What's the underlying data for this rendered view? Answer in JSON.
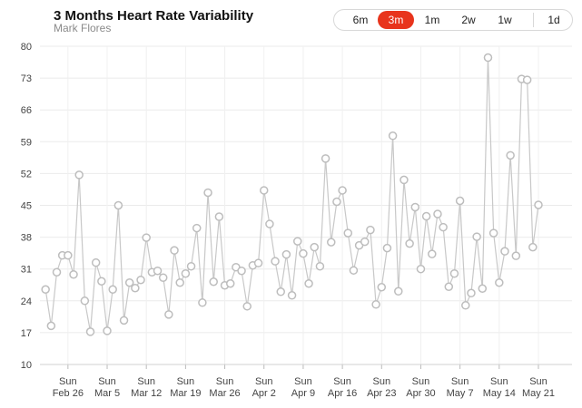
{
  "header": {
    "title": "3 Months Heart Rate Variability",
    "subtitle": "Mark Flores"
  },
  "range_selector": {
    "options": [
      "6m",
      "3m",
      "1m",
      "2w",
      "1w",
      "1d"
    ],
    "selected": "3m",
    "accent_color": "#e8341c"
  },
  "chart_data": {
    "type": "line",
    "title": "3 Months Heart Rate Variability",
    "subtitle": "Mark Flores",
    "xlabel": "",
    "ylabel": "",
    "ylim": [
      10,
      80
    ],
    "yticks": [
      10,
      17,
      24,
      31,
      38,
      45,
      52,
      59,
      66,
      73,
      80
    ],
    "x_tick_labels": [
      {
        "top": "Sun",
        "bottom": "Feb 26",
        "x": 5
      },
      {
        "top": "Sun",
        "bottom": "Mar 5",
        "x": 12
      },
      {
        "top": "Sun",
        "bottom": "Mar 12",
        "x": 19
      },
      {
        "top": "Sun",
        "bottom": "Mar 19",
        "x": 26
      },
      {
        "top": "Sun",
        "bottom": "Mar 26",
        "x": 33
      },
      {
        "top": "Sun",
        "bottom": "Apr 2",
        "x": 40
      },
      {
        "top": "Sun",
        "bottom": "Apr 9",
        "x": 47
      },
      {
        "top": "Sun",
        "bottom": "Apr 16",
        "x": 54
      },
      {
        "top": "Sun",
        "bottom": "Apr 23",
        "x": 61
      },
      {
        "top": "Sun",
        "bottom": "Apr 30",
        "x": 68
      },
      {
        "top": "Sun",
        "bottom": "May 7",
        "x": 75
      },
      {
        "top": "Sun",
        "bottom": "May 14",
        "x": 82
      },
      {
        "top": "Sun",
        "bottom": "May 21",
        "x": 89
      }
    ],
    "xlim": [
      0,
      95
    ],
    "grid": true,
    "line_color": "#c8c8c8",
    "series": [
      {
        "values": [
          26.5,
          18.5,
          30.3,
          34,
          34,
          29.8,
          51.7,
          24,
          17.2,
          32.4,
          28.3,
          17.4,
          26.5,
          45,
          19.7,
          28,
          26.8,
          28.6,
          37.9,
          30.3,
          30.6,
          29.1,
          21,
          35.1,
          28,
          30,
          31.6,
          40,
          23.6,
          47.8,
          28.2,
          42.5,
          27.4,
          27.8,
          31.4,
          30.6,
          22.8,
          31.8,
          32.3,
          48.3,
          40.9,
          32.7,
          26,
          34.2,
          25.2,
          37.1,
          34.4,
          27.8,
          35.8,
          31.6,
          55.3,
          36.9,
          45.8,
          48.3,
          38.9,
          30.7,
          36.2,
          37,
          39.6,
          23.2,
          27,
          35.6,
          60.3,
          26.1,
          50.6,
          36.6,
          44.6,
          31,
          42.6,
          34.3,
          43.1,
          40.2,
          27.1,
          30,
          46,
          23,
          25.7,
          38.1,
          26.7,
          77.5,
          38.9,
          28,
          34.9,
          56,
          33.9,
          72.8,
          72.6,
          35.8,
          45.1
        ]
      }
    ]
  }
}
